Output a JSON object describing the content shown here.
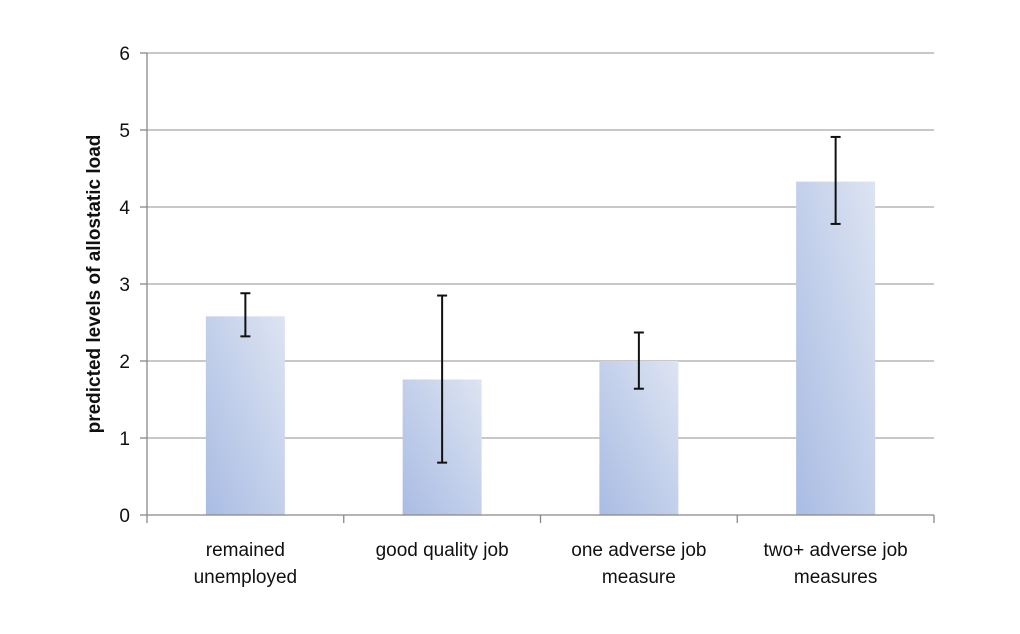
{
  "chart_data": {
    "type": "bar",
    "title": "",
    "xlabel": "",
    "ylabel": "predicted levels of allostatic load",
    "ylim": [
      0,
      6
    ],
    "yticks": [
      0,
      1,
      2,
      3,
      4,
      5,
      6
    ],
    "grid": true,
    "legend": "none",
    "categories": [
      [
        "remained",
        "unemployed"
      ],
      [
        "good quality job"
      ],
      [
        "one adverse job",
        "measure"
      ],
      [
        "two+ adverse job",
        "measures"
      ]
    ],
    "values": [
      2.58,
      1.76,
      2.0,
      4.33
    ],
    "error_low": [
      2.32,
      0.68,
      1.64,
      3.78
    ],
    "error_high": [
      2.88,
      2.85,
      2.37,
      4.91
    ],
    "colors": {
      "bar_light": "#dde4f2",
      "bar_dark": "#a9bce3",
      "grid": "#a6a6a6",
      "axis": "#888888",
      "error_bar": "#111111"
    }
  }
}
